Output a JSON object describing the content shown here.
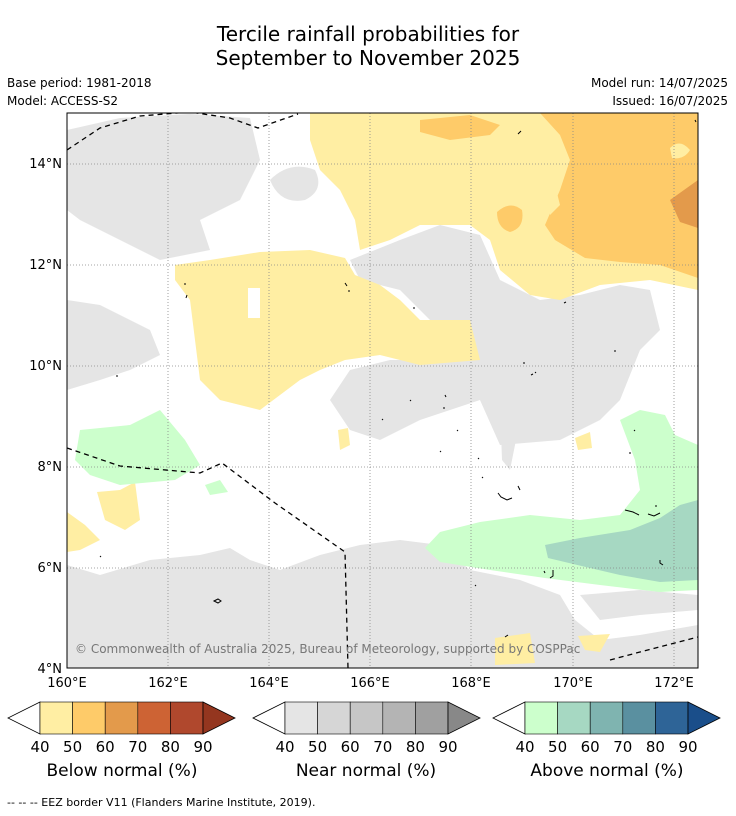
{
  "title": {
    "line1": "Tercile rainfall probabilities for",
    "line2": "September to November 2025"
  },
  "meta": {
    "base_period": "Base period: 1981-2018",
    "model": "Model: ACCESS-S2",
    "model_run": "Model run: 14/07/2025",
    "issued": "Issued: 16/07/2025"
  },
  "map": {
    "lon_labels": [
      "160°E",
      "162°E",
      "164°E",
      "166°E",
      "168°E",
      "170°E",
      "172°E"
    ],
    "lat_labels": [
      "14°N",
      "12°N",
      "10°N",
      "8°N",
      "6°N",
      "4°N"
    ],
    "copyright": "© Commonwealth of Australia 2025, Bureau of Meteorology, supported by COSPPac",
    "colors": {
      "below50": "#ffeea3",
      "below60": "#fecb69",
      "below70": "#e39a4b",
      "near": "#e5e5e5",
      "above50": "#ccffcc",
      "above60": "#a6d8c2"
    }
  },
  "colorbars": [
    {
      "label": "Below normal (%)",
      "ticks": [
        "40",
        "50",
        "60",
        "70",
        "80",
        "90"
      ],
      "colors": [
        "#ffeea3",
        "#fecb69",
        "#e39a4b",
        "#cd6334",
        "#b0482d",
        "#94361f"
      ]
    },
    {
      "label": "Near normal (%)",
      "ticks": [
        "40",
        "50",
        "60",
        "70",
        "80",
        "90"
      ],
      "colors": [
        "#e5e5e5",
        "#d6d6d6",
        "#c6c6c6",
        "#b4b4b4",
        "#a0a0a0",
        "#888888"
      ]
    },
    {
      "label": "Above normal (%)",
      "ticks": [
        "40",
        "50",
        "60",
        "70",
        "80",
        "90"
      ],
      "colors": [
        "#ccffcc",
        "#a6d8c2",
        "#7fb4b0",
        "#5a90a0",
        "#2e6497",
        "#1a4e8a"
      ]
    }
  ],
  "footnote": "--  --  -- EEZ border V11 (Flanders Marine Institute, 2019)."
}
